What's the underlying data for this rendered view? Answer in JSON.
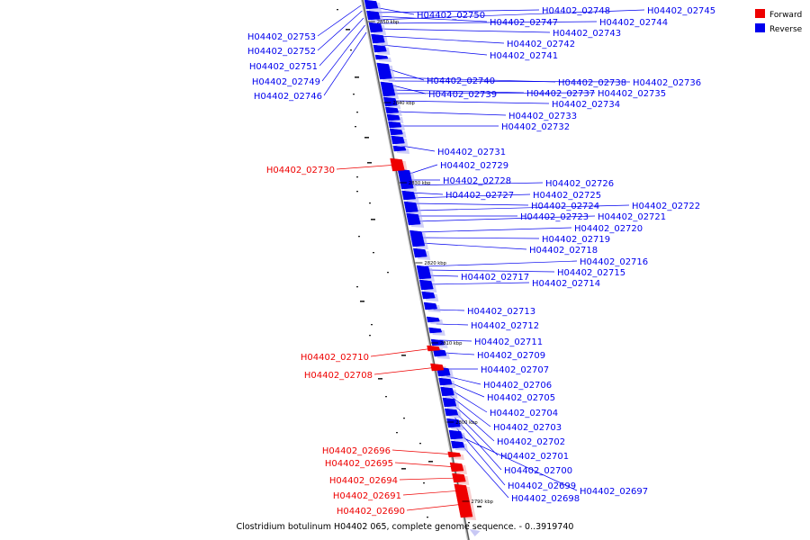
{
  "title": "Clostridium botulinum H04402 065, complete genome sequence. - 0..3919740",
  "legend": [
    {
      "label": "Forward",
      "color": "#ee0000"
    },
    {
      "label": "Reverse",
      "color": "#0000ee"
    }
  ],
  "colors": {
    "forward": "#ee0000",
    "reverse": "#0000ee",
    "axis": "#777777"
  },
  "ticks": [
    "2850 kbp",
    "2840 kbp",
    "2830 kbp",
    "2820 kbp",
    "2810 kbp",
    "2800 kbp",
    "2790 kbp"
  ],
  "forward_genes": [
    "H04402_02730",
    "H04402_02710",
    "H04402_02708",
    "H04402_02696",
    "H04402_02695",
    "H04402_02694",
    "H04402_02691",
    "H04402_02690"
  ],
  "reverse_genes": [
    "H04402_02753",
    "H04402_02752",
    "H04402_02751",
    "H04402_02749",
    "H04402_02746",
    "H04402_02750",
    "H04402_02748",
    "H04402_02747",
    "H04402_02745",
    "H04402_02744",
    "H04402_02743",
    "H04402_02742",
    "H04402_02741",
    "H04402_02740",
    "H04402_02738",
    "H04402_02736",
    "H04402_02739",
    "H04402_02737",
    "H04402_02735",
    "H04402_02734",
    "H04402_02733",
    "H04402_02732",
    "H04402_02731",
    "H04402_02729",
    "H04402_02728",
    "H04402_02726",
    "H04402_02727",
    "H04402_02725",
    "H04402_02724",
    "H04402_02722",
    "H04402_02723",
    "H04402_02721",
    "H04402_02720",
    "H04402_02719",
    "H04402_02718",
    "H04402_02716",
    "H04402_02717",
    "H04402_02715",
    "H04402_02714",
    "H04402_02713",
    "H04402_02712",
    "H04402_02711",
    "H04402_02709",
    "H04402_02707",
    "H04402_02706",
    "H04402_02705",
    "H04402_02704",
    "H04402_02703",
    "H04402_02702",
    "H04402_02701",
    "H04402_02700",
    "H04402_02699",
    "H04402_02697",
    "H04402_02698"
  ]
}
